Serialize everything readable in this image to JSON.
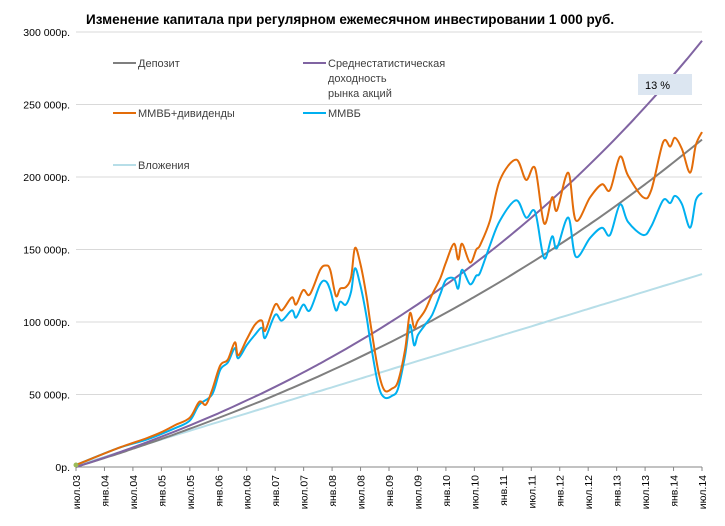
{
  "chart_data": {
    "type": "line",
    "title": "Изменение капитала при регулярном ежемесячном инвестировании 1 000 руб.",
    "xlabel": "",
    "ylabel": "",
    "x_unit": "months since июл.03",
    "xlim": [
      0,
      132
    ],
    "ylim": [
      0,
      300
    ],
    "y_unit": "thousand руб.",
    "grid": true,
    "legend_position": "top-left",
    "y_ticks": [
      {
        "value": 0,
        "label": "0р."
      },
      {
        "value": 50,
        "label": "50 000р."
      },
      {
        "value": 100,
        "label": "100 000р."
      },
      {
        "value": 150,
        "label": "150 000р."
      },
      {
        "value": 200,
        "label": "200 000р."
      },
      {
        "value": 250,
        "label": "250 000р."
      },
      {
        "value": 300,
        "label": "300 000р."
      }
    ],
    "x_ticks": [
      "июл.03",
      "янв.04",
      "июл.04",
      "янв.05",
      "июл.05",
      "янв.06",
      "июл.06",
      "янв.07",
      "июл.07",
      "янв.08",
      "июл.08",
      "янв.09",
      "июл.09",
      "янв.10",
      "июл.10",
      "янв.11",
      "июл.11",
      "янв.12",
      "июл.12",
      "янв.13",
      "июл.13",
      "янв.14",
      "июл.14"
    ],
    "annotation": {
      "text": "13 %",
      "x": 123,
      "y": 262,
      "bg": "#dce6f1"
    },
    "series": [
      {
        "name": "Депозит",
        "color": "#7f7f7f",
        "step": 3,
        "values": [
          0,
          3.1,
          6.2,
          9.3,
          12.6,
          15.9,
          19.3,
          22.8,
          26.4,
          30.0,
          33.8,
          37.6,
          41.5,
          45.4,
          49.5,
          53.7,
          58.0,
          62.3,
          66.8,
          71.3,
          76.0,
          80.8,
          85.6,
          90.6,
          95.7,
          100.9,
          106.3,
          111.7,
          117.3,
          123.0,
          128.8,
          134.8,
          140.9,
          147.1,
          153.5,
          160.0,
          166.7,
          173.5,
          180.5,
          187.7,
          195.0,
          202.4,
          210.1,
          217.9,
          225.8
        ]
      },
      {
        "name": "Среднестатистическая доходность рынка акций",
        "color": "#8064a2",
        "step": 3,
        "values": [
          0,
          3.2,
          6.5,
          9.9,
          13.5,
          17.1,
          20.9,
          24.7,
          28.7,
          32.8,
          37.0,
          41.4,
          45.9,
          50.5,
          55.3,
          60.2,
          65.3,
          70.6,
          76.0,
          81.6,
          87.3,
          93.2,
          99.3,
          105.6,
          112.1,
          118.8,
          125.7,
          132.8,
          140.2,
          147.7,
          155.5,
          163.6,
          171.9,
          180.4,
          189.3,
          198.3,
          207.7,
          217.4,
          227.3,
          237.6,
          248.2,
          259.1,
          270.4,
          282.0,
          293.9
        ]
      },
      {
        "name": "ММВБ+дивиденды",
        "color": "#e36c09",
        "points": [
          [
            0,
            1.4
          ],
          [
            8.9,
            13
          ],
          [
            15,
            20
          ],
          [
            18,
            24
          ],
          [
            21,
            29
          ],
          [
            24,
            34
          ],
          [
            26,
            45
          ],
          [
            27.4,
            43
          ],
          [
            28.7,
            53
          ],
          [
            30.4,
            70
          ],
          [
            32,
            74
          ],
          [
            33.5,
            86
          ],
          [
            34.2,
            77
          ],
          [
            36,
            88
          ],
          [
            37.7,
            98
          ],
          [
            39.2,
            101
          ],
          [
            39.9,
            94
          ],
          [
            42,
            112
          ],
          [
            43.4,
            108
          ],
          [
            45.5,
            117
          ],
          [
            46.4,
            112
          ],
          [
            47.9,
            122
          ],
          [
            49.3,
            119
          ],
          [
            51.5,
            136
          ],
          [
            52.7,
            139
          ],
          [
            53.6,
            136
          ],
          [
            54.8,
            118
          ],
          [
            55.7,
            123
          ],
          [
            56.9,
            124
          ],
          [
            58,
            131
          ],
          [
            58.8,
            151
          ],
          [
            59.9,
            141
          ],
          [
            61.2,
            119
          ],
          [
            62,
            101
          ],
          [
            63.7,
            67
          ],
          [
            65,
            53
          ],
          [
            66.6,
            54
          ],
          [
            67.9,
            59
          ],
          [
            69.4,
            81
          ],
          [
            70.4,
            106
          ],
          [
            71.3,
            96
          ],
          [
            72.1,
            101
          ],
          [
            73.6,
            108
          ],
          [
            75.1,
            119
          ],
          [
            76.8,
            130
          ],
          [
            78,
            141
          ],
          [
            79.7,
            154
          ],
          [
            80.6,
            143
          ],
          [
            81.4,
            154
          ],
          [
            83.1,
            141
          ],
          [
            84.4,
            150
          ],
          [
            85.2,
            153
          ],
          [
            87.3,
            170
          ],
          [
            89.4,
            198
          ],
          [
            92.8,
            212
          ],
          [
            94.9,
            198
          ],
          [
            96.8,
            206
          ],
          [
            98.7,
            168
          ],
          [
            100.4,
            186
          ],
          [
            101.4,
            177
          ],
          [
            103.8,
            203
          ],
          [
            105.4,
            170
          ],
          [
            108.4,
            186
          ],
          [
            110.9,
            195
          ],
          [
            112.6,
            191
          ],
          [
            114.7,
            214
          ],
          [
            116.4,
            201
          ],
          [
            119.6,
            186
          ],
          [
            121.3,
            191
          ],
          [
            123.8,
            224
          ],
          [
            125.3,
            221
          ],
          [
            126.3,
            227
          ],
          [
            127.8,
            219
          ],
          [
            129.5,
            203
          ],
          [
            130.7,
            222
          ],
          [
            132,
            231
          ]
        ]
      },
      {
        "name": "ММВБ",
        "color": "#00b0f0",
        "points": [
          [
            0,
            1.4
          ],
          [
            8.9,
            13
          ],
          [
            15,
            19
          ],
          [
            21,
            27
          ],
          [
            24,
            32
          ],
          [
            26,
            43
          ],
          [
            28.7,
            50
          ],
          [
            30.4,
            67
          ],
          [
            32,
            72
          ],
          [
            33.5,
            82
          ],
          [
            34.2,
            75
          ],
          [
            36,
            84
          ],
          [
            37.7,
            91
          ],
          [
            39.2,
            96
          ],
          [
            39.9,
            89
          ],
          [
            42,
            105
          ],
          [
            43.4,
            101
          ],
          [
            45.5,
            108
          ],
          [
            46.4,
            103
          ],
          [
            47.9,
            112
          ],
          [
            49.3,
            108
          ],
          [
            51.5,
            126
          ],
          [
            52.7,
            128
          ],
          [
            53.6,
            122
          ],
          [
            54.8,
            108
          ],
          [
            55.7,
            114
          ],
          [
            56.9,
            112
          ],
          [
            58,
            121
          ],
          [
            58.8,
            137
          ],
          [
            59.9,
            126
          ],
          [
            61.2,
            105
          ],
          [
            62,
            88
          ],
          [
            63.7,
            57
          ],
          [
            65,
            48
          ],
          [
            66.6,
            49
          ],
          [
            67.9,
            54
          ],
          [
            69.4,
            77
          ],
          [
            70.4,
            98
          ],
          [
            71.3,
            84
          ],
          [
            72.1,
            91
          ],
          [
            73.6,
            98
          ],
          [
            75.1,
            105
          ],
          [
            76.8,
            119
          ],
          [
            78,
            129
          ],
          [
            79.7,
            130
          ],
          [
            80.6,
            123
          ],
          [
            81.4,
            136
          ],
          [
            83.1,
            126
          ],
          [
            84.4,
            132
          ],
          [
            85.2,
            134
          ],
          [
            87.3,
            153
          ],
          [
            89.4,
            170
          ],
          [
            92.8,
            184
          ],
          [
            94.9,
            172
          ],
          [
            96.8,
            176
          ],
          [
            98.7,
            144
          ],
          [
            100.4,
            159
          ],
          [
            101.4,
            151
          ],
          [
            103.8,
            172
          ],
          [
            105.4,
            145
          ],
          [
            108.4,
            158
          ],
          [
            110.9,
            165
          ],
          [
            112.6,
            160
          ],
          [
            114.7,
            181
          ],
          [
            116.4,
            169
          ],
          [
            119.6,
            160
          ],
          [
            121.3,
            166
          ],
          [
            123.8,
            184
          ],
          [
            125.3,
            182
          ],
          [
            126.3,
            187
          ],
          [
            127.8,
            181
          ],
          [
            129.5,
            165
          ],
          [
            130.7,
            184
          ],
          [
            132,
            189
          ]
        ]
      },
      {
        "name": "Вложения",
        "color": "#b7dee8",
        "step": 3,
        "values": [
          1,
          4,
          7,
          10,
          13,
          16,
          19,
          22,
          25,
          28,
          31,
          34,
          37,
          40,
          43,
          46,
          49,
          52,
          55,
          58,
          61,
          64,
          67,
          70,
          73,
          76,
          79,
          82,
          85,
          88,
          91,
          94,
          97,
          100,
          103,
          106,
          109,
          112,
          115,
          118,
          121,
          124,
          127,
          130,
          133
        ]
      }
    ],
    "legend": [
      {
        "label": "Депозит",
        "lines": [
          "Депозит"
        ]
      },
      {
        "label": "Среднестатистическая доходность рынка акций",
        "lines": [
          "Среднестатистическая",
          "доходность",
          "рынка акций"
        ]
      },
      {
        "label": "ММВБ+дивиденды",
        "lines": [
          "ММВБ+дивиденды"
        ]
      },
      {
        "label": "ММВБ",
        "lines": [
          "ММВБ"
        ]
      },
      {
        "label": "Вложения",
        "lines": [
          "Вложения"
        ]
      }
    ]
  }
}
